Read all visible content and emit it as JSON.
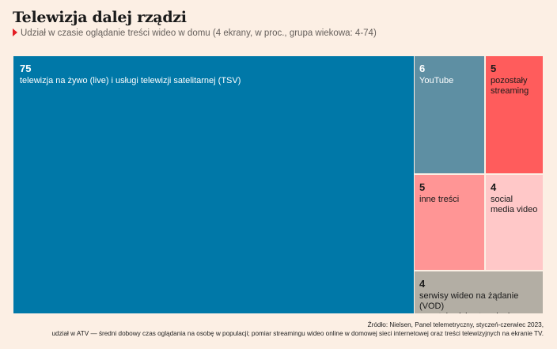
{
  "header": {
    "title": "Telewizja dalej rządzi",
    "subtitle": "Udział w czasie oglądanie treści wideo w domu (4 ekrany, w proc., grupa wiekowa: 4-74)"
  },
  "chart_data": {
    "type": "treemap",
    "items": [
      {
        "label": "telewizja na żywo (live) i usługi telewizji satelitarnej (TSV)",
        "value": 75,
        "color": "#0078a8",
        "text_color": "#ffffff"
      },
      {
        "label": "YouTube",
        "value": 6,
        "color": "#5e8fa3",
        "text_color": "#ffffff"
      },
      {
        "label": "pozostały\nstreaming",
        "value": 5,
        "color": "#ff5c5c",
        "text_color": "#1a1a1a"
      },
      {
        "label": "inne treści",
        "value": 5,
        "color": "#ff9595",
        "text_color": "#1a1a1a"
      },
      {
        "label": "social\nmedia video",
        "value": 4,
        "color": "#ffc8c8",
        "text_color": "#1a1a1a"
      },
      {
        "label": "serwisy wideo na żądanie (VOD)\noraz telewizja strumieniowa (OTT)",
        "value": 4,
        "color": "#b3aea4",
        "text_color": "#1a1a1a"
      }
    ]
  },
  "footer": {
    "line1": "Źródło: Nielsen, Panel telemetryczny, styczeń-czerwiec 2023,",
    "line2": "udział w ATV — średni dobowy czas oglądania na osobę w populacji; pomiar streamingu wideo online w domowej sieci internetowej oraz treści telewizyjnych na ekranie TV."
  }
}
